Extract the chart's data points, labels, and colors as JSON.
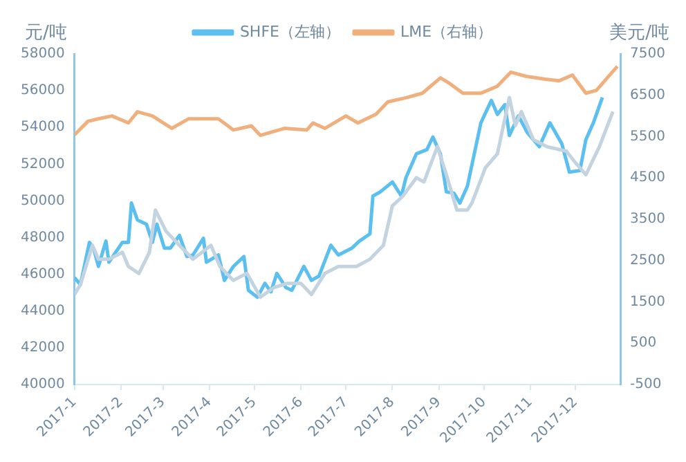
{
  "chart_data": {
    "type": "line",
    "ylabel": "元/吨",
    "y2label": "美元/吨",
    "legend": "top",
    "grid": false,
    "marker": "none",
    "line_style": "solid",
    "xlim": [
      "2017-01-01",
      "2017-12-31"
    ],
    "xticks": [
      {
        "value": "2017-01-01",
        "label": "2017-1"
      },
      {
        "value": "2017-02-01",
        "label": "2017-2"
      },
      {
        "value": "2017-03-01",
        "label": "2017-3"
      },
      {
        "value": "2017-04-01",
        "label": "2017-4"
      },
      {
        "value": "2017-05-01",
        "label": "2017-5"
      },
      {
        "value": "2017-06-01",
        "label": "2017-6"
      },
      {
        "value": "2017-07-01",
        "label": "2017-7"
      },
      {
        "value": "2017-08-01",
        "label": "2017-8"
      },
      {
        "value": "2017-09-01",
        "label": "2017-9"
      },
      {
        "value": "2017-10-01",
        "label": "2017-10"
      },
      {
        "value": "2017-11-01",
        "label": "2017-11"
      },
      {
        "value": "2017-12-01",
        "label": "2017-12"
      }
    ],
    "ylim": [
      40000,
      58000
    ],
    "yticks": [
      40000,
      42000,
      44000,
      46000,
      48000,
      50000,
      52000,
      54000,
      56000,
      58000
    ],
    "y2lim": [
      -500,
      7500
    ],
    "y2ticks": [
      -500,
      500,
      1500,
      2500,
      3500,
      4500,
      5500,
      6500,
      7500
    ],
    "series": [
      {
        "color": "#c3d3df",
        "x": [
          "2017-01-01",
          "2017-01-05",
          "2017-01-13",
          "2017-01-17",
          "2017-01-24",
          "2017-02-02",
          "2017-02-06",
          "2017-02-13",
          "2017-02-20",
          "2017-02-24",
          "2017-03-03",
          "2017-03-12",
          "2017-03-21",
          "2017-04-02",
          "2017-04-08",
          "2017-04-17",
          "2017-04-26",
          "2017-05-05",
          "2017-05-14",
          "2017-05-23",
          "2017-06-01",
          "2017-06-08",
          "2017-06-17",
          "2017-06-26",
          "2017-07-08",
          "2017-07-17",
          "2017-07-26",
          "2017-08-01",
          "2017-08-08",
          "2017-08-17",
          "2017-08-22",
          "2017-08-31",
          "2017-09-06",
          "2017-09-13",
          "2017-09-20",
          "2017-09-23",
          "2017-10-02",
          "2017-10-10",
          "2017-10-18",
          "2017-10-22",
          "2017-10-26",
          "2017-11-03",
          "2017-11-12",
          "2017-11-25",
          "2017-11-30",
          "2017-12-08",
          "2017-12-17",
          "2017-12-26"
        ],
        "values": [
          44900,
          45440,
          47580,
          46820,
          46820,
          47200,
          46430,
          46050,
          47200,
          49500,
          48350,
          47580,
          46820,
          47580,
          46430,
          45670,
          46050,
          44750,
          45280,
          45510,
          45510,
          44900,
          46050,
          46430,
          46430,
          46820,
          47580,
          49730,
          50260,
          51260,
          51030,
          52950,
          51420,
          49500,
          49500,
          49880,
          51800,
          52560,
          55630,
          54100,
          54860,
          53330,
          52950,
          52710,
          52180,
          51420,
          52950,
          54860
        ]
      },
      {
        "name": "SHFE（左轴）",
        "color": "#5bbff0",
        "x": [
          "2017-01-01",
          "2017-01-05",
          "2017-01-11",
          "2017-01-14",
          "2017-01-17",
          "2017-01-22",
          "2017-01-24",
          "2017-02-02",
          "2017-02-06",
          "2017-02-08",
          "2017-02-12",
          "2017-02-18",
          "2017-02-22",
          "2017-02-25",
          "2017-03-02",
          "2017-03-06",
          "2017-03-12",
          "2017-03-17",
          "2017-03-21",
          "2017-03-28",
          "2017-03-30",
          "2017-04-07",
          "2017-04-11",
          "2017-04-17",
          "2017-04-24",
          "2017-04-27",
          "2017-05-03",
          "2017-05-08",
          "2017-05-12",
          "2017-05-16",
          "2017-05-22",
          "2017-05-26",
          "2017-06-03",
          "2017-06-08",
          "2017-06-13",
          "2017-06-21",
          "2017-06-26",
          "2017-07-05",
          "2017-07-10",
          "2017-07-17",
          "2017-07-19",
          "2017-07-24",
          "2017-08-01",
          "2017-08-07",
          "2017-08-10",
          "2017-08-17",
          "2017-08-24",
          "2017-08-28",
          "2017-09-02",
          "2017-09-06",
          "2017-09-11",
          "2017-09-15",
          "2017-09-20",
          "2017-09-24",
          "2017-09-29",
          "2017-10-06",
          "2017-10-10",
          "2017-10-15",
          "2017-10-18",
          "2017-10-24",
          "2017-10-30",
          "2017-11-07",
          "2017-11-14",
          "2017-11-22",
          "2017-11-27",
          "2017-12-04",
          "2017-12-08",
          "2017-12-13",
          "2017-12-19"
        ],
        "values": [
          45820,
          45440,
          47740,
          47350,
          46430,
          47810,
          46660,
          47740,
          47740,
          49880,
          48960,
          48730,
          47740,
          48730,
          47430,
          47430,
          48120,
          46970,
          47050,
          47960,
          46660,
          47050,
          45670,
          46430,
          46970,
          45130,
          44750,
          45510,
          45050,
          46050,
          45280,
          45130,
          46430,
          45670,
          45900,
          47580,
          47050,
          47430,
          47810,
          48200,
          50260,
          50490,
          51030,
          50260,
          51260,
          52560,
          52790,
          53480,
          52560,
          50490,
          50420,
          49880,
          50800,
          52330,
          54250,
          55470,
          54710,
          55240,
          53560,
          54630,
          53710,
          52950,
          54250,
          53100,
          51570,
          51650,
          53330,
          54250,
          55630
        ]
      },
      {
        "name": "LME（右轴）",
        "color": "#f0b07e",
        "axis": "y2",
        "x": [
          "2017-01-01",
          "2017-01-10",
          "2017-01-17",
          "2017-01-26",
          "2017-02-06",
          "2017-02-12",
          "2017-02-22",
          "2017-03-07",
          "2017-03-18",
          "2017-03-28",
          "2017-04-07",
          "2017-04-17",
          "2017-04-29",
          "2017-05-05",
          "2017-05-21",
          "2017-06-05",
          "2017-06-09",
          "2017-06-17",
          "2017-07-01",
          "2017-07-09",
          "2017-07-21",
          "2017-07-29",
          "2017-08-10",
          "2017-08-21",
          "2017-09-02",
          "2017-09-08",
          "2017-09-17",
          "2017-09-29",
          "2017-10-10",
          "2017-10-19",
          "2017-10-29",
          "2017-11-11",
          "2017-11-20",
          "2017-11-29",
          "2017-12-08",
          "2017-12-15",
          "2017-12-29"
        ],
        "values": [
          5540,
          5870,
          5930,
          6000,
          5830,
          6100,
          6000,
          5700,
          5930,
          5930,
          5930,
          5660,
          5760,
          5530,
          5700,
          5660,
          5830,
          5700,
          6000,
          5830,
          6040,
          6340,
          6440,
          6550,
          6920,
          6790,
          6550,
          6550,
          6720,
          7060,
          6960,
          6890,
          6850,
          6990,
          6550,
          6620,
          7200
        ]
      }
    ]
  }
}
